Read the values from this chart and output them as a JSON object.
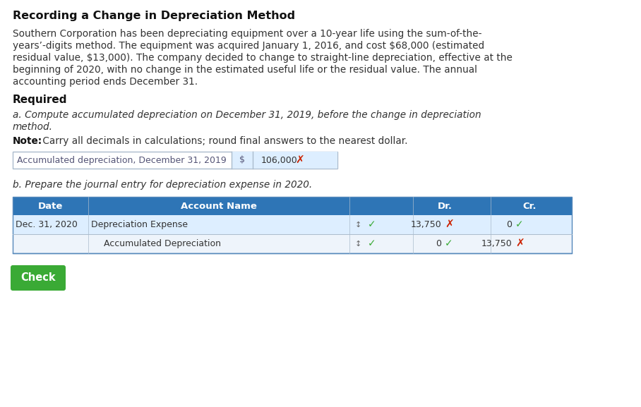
{
  "title": "Recording a Change in Depreciation Method",
  "para_lines": [
    "Southern Corporation has been depreciating equipment over a 10-year life using the sum-of-the-",
    "years’-digits method. The equipment was acquired January 1, 2016, and cost $68,000 (estimated",
    "residual value, $13,000). The company decided to change to straight-line depreciation, effective at the",
    "beginning of 2020, with no change in the estimated useful life or the residual value. The annual",
    "accounting period ends December 31."
  ],
  "required_label": "Required",
  "part_a_line1": "a. Compute accumulated depreciation on December 31, 2019, before the change in depreciation",
  "part_a_line2": "method.",
  "note_bold": "Note:",
  "note_rest": " Carry all decimals in calculations; round final answers to the nearest dollar.",
  "accum_label": "Accumulated depreciation, December 31, 2019",
  "dollar_sign": "$",
  "accum_value": "106,000",
  "part_b_text": "b. Prepare the journal entry for depreciation expense in 2020.",
  "table_headers": [
    "Date",
    "Account Name",
    "Dr.",
    "Cr."
  ],
  "table_header_bg": "#2e75b6",
  "table_header_color": "#ffffff",
  "row1_date": "Dec. 31, 2020",
  "row1_account": "Depreciation Expense",
  "row1_dr": "13,750",
  "row1_cr": "0",
  "row1_dr_mark": "x",
  "row1_cr_mark": "check",
  "row2_account": "Accumulated Depreciation",
  "row2_dr": "0",
  "row2_cr": "13,750",
  "row2_dr_mark": "check",
  "row2_cr_mark": "x",
  "check_button_text": "Check",
  "check_button_bg": "#3aaa35",
  "bg_color": "#ffffff",
  "text_color": "#333333",
  "red_color": "#cc2200",
  "green_color": "#3aaa35",
  "table_row1_bg": "#ddeeff",
  "table_row2_bg": "#eef4fb",
  "table_border_color": "#5588bb",
  "input_box_bg": "#f4f8fc",
  "input_dollar_bg": "#ddeeff"
}
